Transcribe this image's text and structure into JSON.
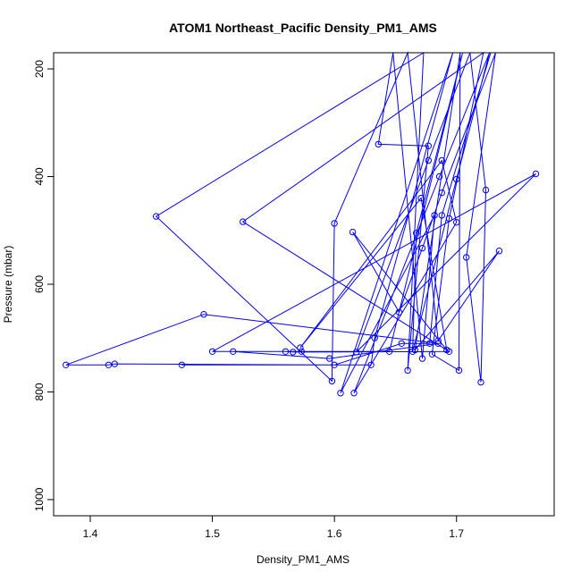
{
  "chart_data": {
    "type": "line",
    "title": "ATOM1 Northeast_Pacific Density_PM1_AMS",
    "xlabel": "Density_PM1_AMS",
    "ylabel": "Pressure (mbar)",
    "xlim": [
      1.37,
      1.78
    ],
    "ylim": [
      1030,
      170
    ],
    "y_reversed": true,
    "x_ticks": [
      1.4,
      1.5,
      1.6,
      1.7
    ],
    "x_tick_labels": [
      "1.4",
      "1.5",
      "1.6",
      "1.7"
    ],
    "y_ticks": [
      200,
      400,
      600,
      800,
      1000
    ],
    "y_tick_labels": [
      "200",
      "400",
      "600",
      "800",
      "1000"
    ],
    "grid": false,
    "series_color": "#0000ff",
    "markers": "open-circle",
    "points": [
      [
        1.475,
        750
      ],
      [
        1.63,
        750
      ],
      [
        1.633,
        700
      ],
      [
        1.697,
        170
      ],
      [
        1.605,
        802
      ],
      [
        1.682,
        472
      ],
      [
        1.672,
        738
      ],
      [
        1.648,
        170
      ],
      [
        1.636,
        340
      ],
      [
        1.677,
        343
      ],
      [
        1.66,
        760
      ],
      [
        1.673,
        170
      ],
      [
        1.454,
        474
      ],
      [
        1.598,
        780
      ],
      [
        1.6,
        487
      ],
      [
        1.66,
        170
      ],
      [
        1.685,
        705
      ],
      [
        1.735,
        538
      ],
      [
        1.666,
        722
      ],
      [
        1.703,
        170
      ],
      [
        1.702,
        760
      ],
      [
        1.68,
        730
      ],
      [
        1.694,
        478
      ],
      [
        1.722,
        170
      ],
      [
        1.525,
        484
      ],
      [
        1.694,
        725
      ],
      [
        1.566,
        726
      ],
      [
        1.56,
        725
      ],
      [
        1.5,
        725
      ],
      [
        1.765,
        395
      ],
      [
        1.618,
        726
      ],
      [
        1.677,
        370
      ],
      [
        1.711,
        170
      ],
      [
        1.724,
        425
      ],
      [
        1.72,
        782
      ],
      [
        1.708,
        550
      ],
      [
        1.732,
        170
      ],
      [
        1.688,
        430
      ],
      [
        1.672,
        533
      ],
      [
        1.653,
        652
      ],
      [
        1.615,
        503
      ],
      [
        1.692,
        722
      ],
      [
        1.671,
        440
      ],
      [
        1.572,
        718
      ],
      [
        1.688,
        370
      ],
      [
        1.7,
        485
      ],
      [
        1.616,
        802
      ],
      [
        1.686,
        400
      ],
      [
        1.727,
        170
      ],
      [
        1.7,
        405
      ],
      [
        1.664,
        725
      ],
      [
        1.667,
        505
      ],
      [
        1.705,
        170
      ],
      [
        1.645,
        725
      ],
      [
        1.573,
        725
      ],
      [
        1.517,
        725
      ],
      [
        1.596,
        738
      ],
      [
        1.685,
        710
      ],
      [
        1.493,
        656
      ],
      [
        1.38,
        750
      ],
      [
        1.415,
        750
      ],
      [
        1.42,
        748
      ],
      [
        1.6,
        750
      ],
      [
        1.655,
        710
      ],
      [
        1.678,
        710
      ],
      [
        1.688,
        472
      ],
      [
        1.728,
        170
      ]
    ]
  }
}
